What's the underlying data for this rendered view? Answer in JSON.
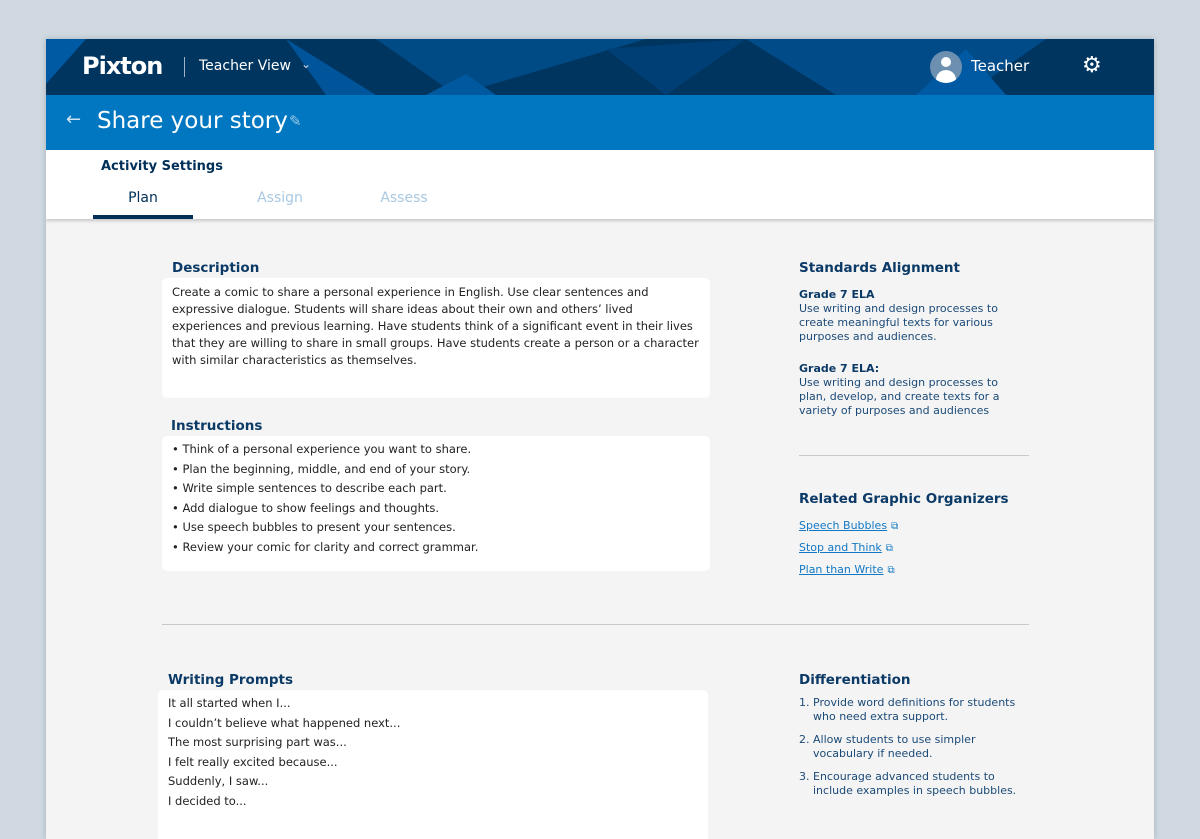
{
  "header": {
    "logo": "Pixton",
    "view": "Teacher View",
    "user": "Teacher"
  },
  "title": "Share your story",
  "tabs": {
    "heading": "Activity Settings",
    "items": [
      "Plan",
      "Assign",
      "Assess"
    ],
    "active": "Plan"
  },
  "description": {
    "heading": "Description",
    "text": "Create a comic to share a personal experience in English. Use clear sentences and expressive dialogue. Students will share ideas about their own and others’ lived experiences and previous learning. Have students think of a significant event in their lives that they are willing to share in small groups. Have students create a person or a character with similar characteristics as themselves."
  },
  "instructions": {
    "heading": "Instructions",
    "items": [
      "• Think of a personal experience you want to share.",
      "• Plan the beginning, middle, and end of your story.",
      "• Write simple sentences to describe each part.",
      "• Add dialogue to show feelings and thoughts.",
      "• Use speech bubbles to present your sentences.",
      "• Review your comic for clarity and correct grammar."
    ]
  },
  "standards": {
    "heading": "Standards Alignment",
    "items": [
      {
        "grade": "Grade 7 ELA",
        "text": "Use writing and design processes to create meaningful texts for various purposes and audiences."
      },
      {
        "grade": "Grade 7 ELA:",
        "text": "Use writing and design processes to plan, develop, and create texts for a variety of purposes and audiences"
      }
    ]
  },
  "organizers": {
    "heading": "Related Graphic Organizers",
    "links": [
      "Speech Bubbles",
      "Stop and Think",
      "Plan than Write"
    ]
  },
  "prompts": {
    "heading": "Writing Prompts",
    "items": [
      "It all started when I...",
      "I couldn’t believe what happened next...",
      "The most surprising part was...",
      "I felt really excited because...",
      "Suddenly, I saw...",
      "I decided to..."
    ]
  },
  "differentiation": {
    "heading": "Differentiation",
    "items": [
      {
        "n": "1.",
        "text": "Provide word definitions for students who need extra support."
      },
      {
        "n": "2.",
        "text": "Allow students to use simpler vocabulary if needed."
      },
      {
        "n": "3.",
        "text": "Encourage advanced students to include examples in speech bubbles."
      }
    ]
  },
  "colors": {
    "header": "#003560",
    "titlebar": "#0077c0",
    "accent": "#002f57",
    "link": "#1278c5"
  }
}
